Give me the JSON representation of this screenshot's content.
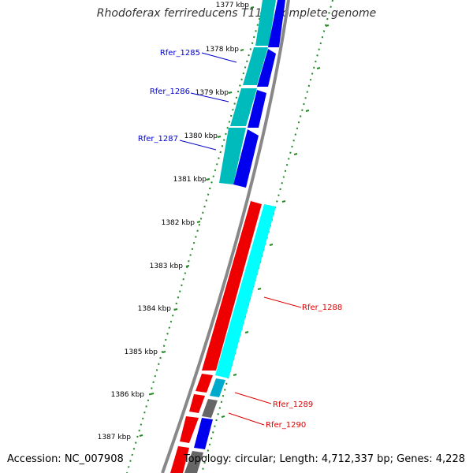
{
  "title": "Rhodoferax ferrireducens T118, complete genome",
  "footer": {
    "accession": "Accession: NC_007908",
    "summary": "Topology: circular; Length: 4,712,337 bp; Genes: 4,228"
  },
  "scale": {
    "ticks": [
      "1377 kbp",
      "1378 kbp",
      "1379 kbp",
      "1380 kbp",
      "1381 kbp",
      "1382 kbp",
      "1383 kbp",
      "1384 kbp",
      "1385 kbp",
      "1386 kbp",
      "1387 kbp"
    ]
  },
  "genes": [
    {
      "label": "Rfer_1285",
      "color": "#0000cc"
    },
    {
      "label": "Rfer_1286",
      "color": "#0000cc"
    },
    {
      "label": "Rfer_1287",
      "color": "#0000cc"
    },
    {
      "label": "Rfer_1288",
      "color": "#dd0000"
    },
    {
      "label": "Rfer_1289",
      "color": "#dd0000"
    },
    {
      "label": "Rfer_1290",
      "color": "#dd0000"
    }
  ],
  "colors": {
    "backbone": "#888888",
    "forward_cds": "#0000ee",
    "forward_gene": "#00aaaa",
    "reverse_cds": "#ee0000",
    "reverse_gene": "#00ffff",
    "other": "#666666",
    "tick": "#228822"
  }
}
